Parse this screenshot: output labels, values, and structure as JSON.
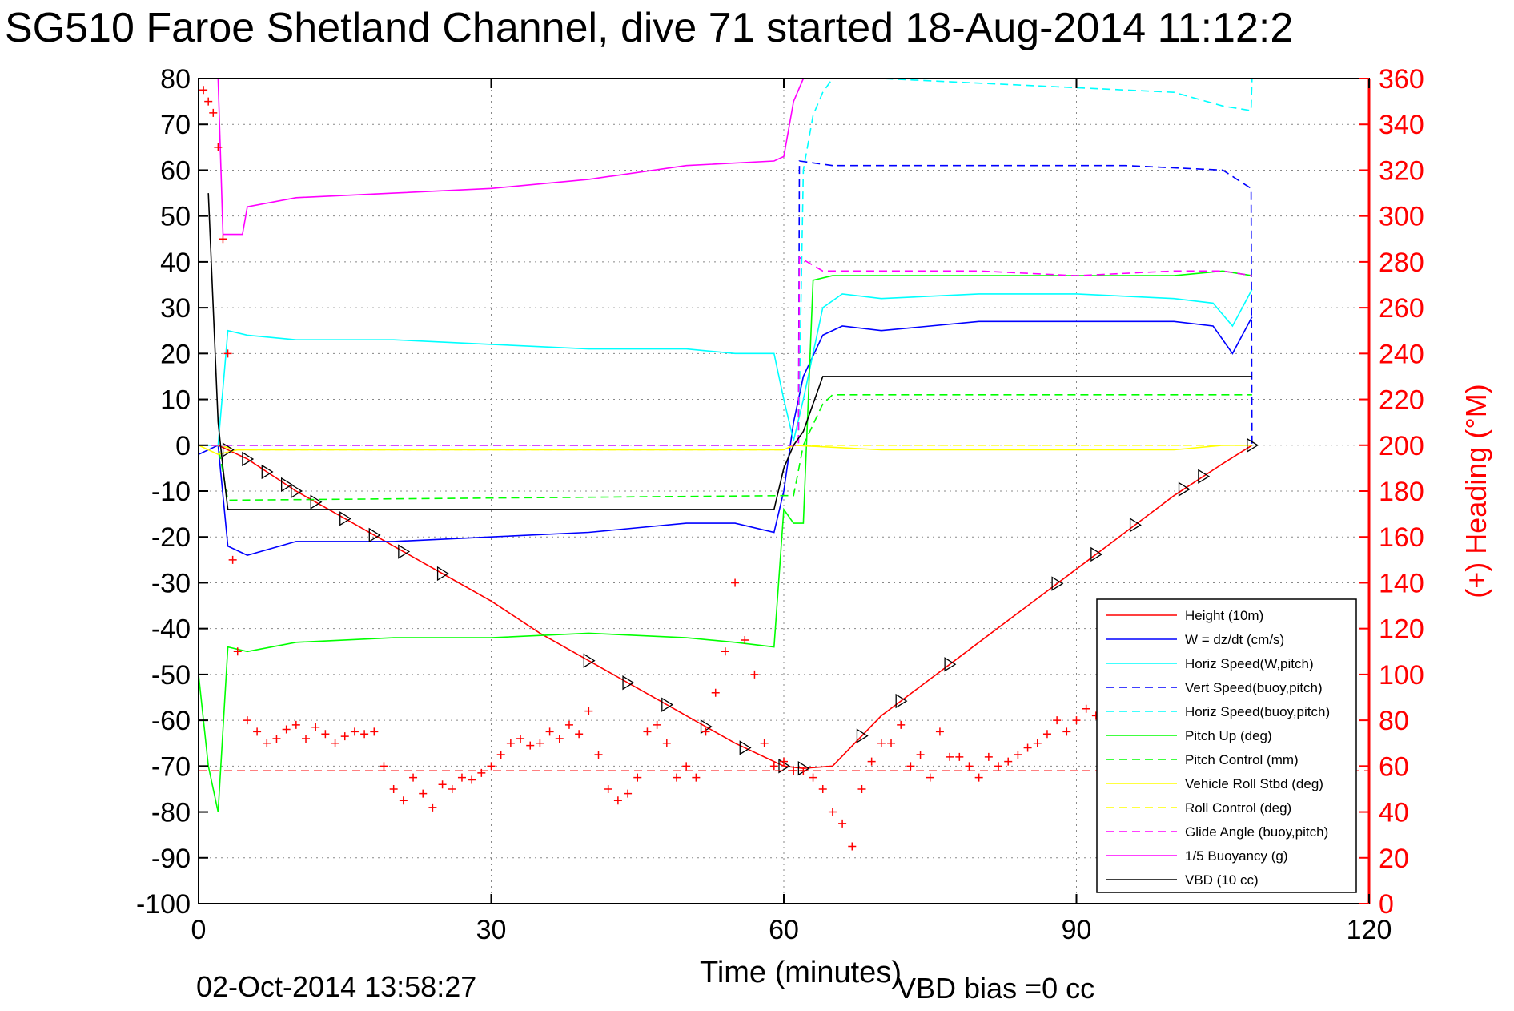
{
  "chart_data": {
    "type": "line",
    "title": "SG510 Faroe Shetland Channel, dive 71 started 18-Aug-2014 11:12:2",
    "xlabel": "Time (minutes)",
    "ylabel_right": "(+) Heading (°M)",
    "xlim": [
      0,
      120
    ],
    "ylim": [
      -100,
      80
    ],
    "ylim_right": [
      0,
      360
    ],
    "x_ticks": [
      "0",
      "30",
      "60",
      "90",
      "120"
    ],
    "y_ticks": [
      "80",
      "70",
      "60",
      "50",
      "40",
      "30",
      "20",
      "10",
      "0",
      "-10",
      "-20",
      "-30",
      "-40",
      "-50",
      "-60",
      "-70",
      "-80",
      "-90",
      "-100"
    ],
    "y_ticks_right": [
      "360",
      "340",
      "320",
      "300",
      "280",
      "260",
      "240",
      "220",
      "200",
      "180",
      "160",
      "140",
      "120",
      "100",
      "80",
      "60",
      "40",
      "20",
      "0"
    ],
    "grid": true,
    "legend_position": "bottom-right",
    "footer_date": "02-Oct-2014 13:58:27",
    "footer_note": "VBD bias =0 cc",
    "colors": {
      "red": "#ff0000",
      "blue": "#0000ff",
      "cyan": "#00ffff",
      "green": "#00ff00",
      "yellow": "#ffff00",
      "magenta": "#ff00ff",
      "black": "#000000"
    },
    "series": [
      {
        "name": "Height (10m)",
        "color": "#ff0000",
        "style": "solid",
        "x": [
          2,
          5,
          10,
          15,
          20,
          25,
          30,
          35,
          40,
          45,
          50,
          55,
          60,
          62,
          65,
          70,
          75,
          80,
          85,
          90,
          95,
          100,
          105,
          108
        ],
        "y": [
          0,
          -3,
          -10,
          -16,
          -22,
          -28,
          -34,
          -41,
          -47,
          -53,
          -59,
          -65,
          -70,
          -70.5,
          -70,
          -59,
          -51,
          -43,
          -35,
          -27,
          -19,
          -11,
          -4,
          0
        ]
      },
      {
        "name": "W = dz/dt (cm/s)",
        "color": "#0000ff",
        "style": "solid",
        "x": [
          0,
          2,
          3,
          5,
          10,
          20,
          30,
          40,
          50,
          55,
          59,
          60,
          61,
          62,
          64,
          66,
          70,
          80,
          90,
          100,
          104,
          106,
          108
        ],
        "y": [
          -2,
          0,
          -22,
          -24,
          -21,
          -21,
          -20,
          -19,
          -17,
          -17,
          -19,
          -10,
          5,
          15,
          24,
          26,
          25,
          27,
          27,
          27,
          26,
          20,
          28
        ]
      },
      {
        "name": "Horiz Speed(W,pitch)",
        "color": "#00ffff",
        "style": "solid",
        "x": [
          0,
          2,
          3,
          5,
          10,
          20,
          30,
          40,
          50,
          55,
          59,
          60,
          61,
          62,
          64,
          66,
          70,
          80,
          90,
          100,
          104,
          106,
          108
        ],
        "y": [
          0,
          0,
          25,
          24,
          23,
          23,
          22,
          21,
          21,
          20,
          20,
          10,
          1,
          10,
          30,
          33,
          32,
          33,
          33,
          32,
          31,
          26,
          34
        ]
      },
      {
        "name": "Vert Speed(buoy,pitch)",
        "color": "#0000ff",
        "style": "dashed",
        "x": [
          0,
          61.5,
          61.6,
          65,
          75,
          85,
          95,
          105,
          107.9,
          108
        ],
        "y": [
          0,
          0,
          62,
          61,
          61,
          61,
          61,
          60,
          56,
          0
        ]
      },
      {
        "name": "Horiz Speed(buoy,pitch)",
        "color": "#00ffff",
        "style": "dashed",
        "x": [
          0,
          61.5,
          62,
          63,
          64,
          65,
          70,
          80,
          90,
          100,
          105,
          107.9,
          108
        ],
        "y": [
          0,
          0,
          60,
          72,
          77,
          80,
          80,
          79,
          78,
          77,
          74,
          73,
          80
        ]
      },
      {
        "name": "Pitch Up (deg)",
        "color": "#00ff00",
        "style": "solid",
        "x": [
          0,
          1,
          2,
          3,
          5,
          10,
          20,
          30,
          40,
          50,
          55,
          59,
          60,
          61,
          62,
          63,
          65,
          70,
          80,
          90,
          100,
          105,
          108
        ],
        "y": [
          -50,
          -70,
          -80,
          -44,
          -45,
          -43,
          -42,
          -42,
          -41,
          -42,
          -43,
          -44,
          -14,
          -17,
          -17,
          36,
          37,
          37,
          37,
          37,
          37,
          38,
          37
        ]
      },
      {
        "name": "Pitch Control (mm)",
        "color": "#00ff00",
        "style": "dashed",
        "x": [
          0,
          2,
          3,
          60,
          61,
          62,
          64,
          65,
          108
        ],
        "y": [
          0,
          0,
          -12,
          -11,
          -11,
          0,
          9,
          11,
          11
        ]
      },
      {
        "name": "Vehicle Roll Stbd (deg)",
        "color": "#ffff00",
        "style": "solid",
        "x": [
          0,
          2,
          4,
          10,
          20,
          30,
          40,
          50,
          60,
          61,
          70,
          80,
          90,
          100,
          105,
          108
        ],
        "y": [
          0,
          -2,
          -1,
          -1,
          -1,
          -1,
          -1,
          -1,
          -1,
          0,
          -1,
          -1,
          -1,
          -1,
          0,
          0
        ]
      },
      {
        "name": "Roll Control (deg)",
        "color": "#ffff00",
        "style": "dashed",
        "x": [
          0,
          2,
          4,
          60,
          61,
          108
        ],
        "y": [
          0,
          0,
          -1,
          -1,
          0,
          0
        ]
      },
      {
        "name": "Glide Angle (buoy,pitch)",
        "color": "#ff00ff",
        "style": "dashed",
        "x": [
          0,
          61.5,
          61.6,
          64,
          70,
          80,
          90,
          100,
          105,
          108
        ],
        "y": [
          0,
          0,
          41,
          38,
          38,
          38,
          37,
          38,
          38,
          37
        ]
      },
      {
        "name": "1/5 Buoyancy (g)",
        "color": "#ff00ff",
        "style": "solid",
        "x": [
          2,
          2.5,
          4.5,
          5,
          10,
          20,
          30,
          40,
          50,
          59,
          60,
          61,
          62
        ],
        "y": [
          80,
          46,
          46,
          52,
          54,
          55,
          56,
          58,
          61,
          62,
          63,
          75,
          80
        ]
      },
      {
        "name": "VBD (10 cc)",
        "color": "#000000",
        "style": "solid",
        "x": [
          1,
          2,
          2.5,
          3,
          59,
          60,
          61,
          62,
          64,
          108
        ],
        "y": [
          55,
          5,
          -5,
          -14,
          -14,
          -5,
          0,
          3,
          15,
          15
        ]
      }
    ],
    "heading": {
      "name": "(+) Heading",
      "color": "#ff0000",
      "marker": "+",
      "axis": "right",
      "mean": 58,
      "x": [
        0.5,
        1,
        1.5,
        2,
        2.5,
        3,
        3.5,
        4,
        5,
        6,
        7,
        8,
        9,
        10,
        11,
        12,
        13,
        14,
        15,
        16,
        17,
        18,
        19,
        20,
        21,
        22,
        23,
        24,
        25,
        26,
        27,
        28,
        29,
        30,
        31,
        32,
        33,
        34,
        35,
        36,
        37,
        38,
        39,
        40,
        41,
        42,
        43,
        44,
        45,
        46,
        47,
        48,
        49,
        50,
        51,
        52,
        53,
        54,
        55,
        56,
        57,
        58,
        59,
        60,
        61,
        62,
        63,
        64,
        65,
        66,
        67,
        68,
        69,
        70,
        71,
        72,
        73,
        74,
        75,
        76,
        77,
        78,
        79,
        80,
        81,
        82,
        83,
        84,
        85,
        86,
        87,
        88,
        89,
        90,
        91,
        92
      ],
      "y": [
        355,
        350,
        345,
        330,
        290,
        240,
        150,
        110,
        80,
        75,
        70,
        72,
        76,
        78,
        72,
        77,
        74,
        70,
        73,
        75,
        74,
        75,
        60,
        50,
        45,
        55,
        48,
        42,
        52,
        50,
        55,
        54,
        57,
        60,
        65,
        70,
        72,
        69,
        70,
        75,
        72,
        78,
        74,
        84,
        65,
        50,
        45,
        48,
        55,
        75,
        78,
        70,
        55,
        60,
        55,
        75,
        92,
        110,
        140,
        115,
        100,
        70,
        60,
        62,
        58,
        58,
        55,
        50,
        40,
        35,
        25,
        50,
        62,
        70,
        70,
        78,
        60,
        65,
        55,
        75,
        64,
        64,
        60,
        55,
        64,
        60,
        62,
        65,
        68,
        70,
        74,
        80,
        75,
        80,
        85,
        82
      ]
    }
  }
}
